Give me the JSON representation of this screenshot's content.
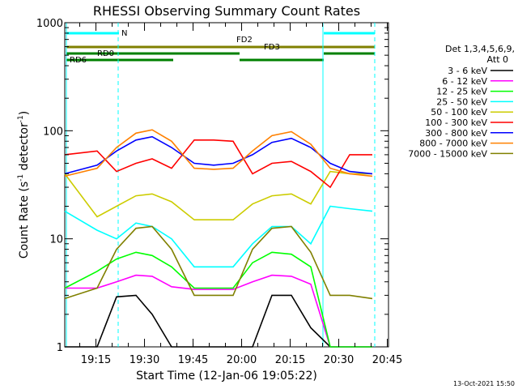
{
  "chart_data": {
    "type": "line",
    "title": "RHESSI Observing Summary Count Rates",
    "xlabel": "Start Time (12-Jan-06 19:05:22)",
    "ylabel": "Count Rate (s⁻¹ detector⁻¹)",
    "ylabel_main": "Count Rate (s",
    "ylabel_sup1": "-1",
    "ylabel_mid": " detector",
    "ylabel_sup2": "-1",
    "ylabel_end": ")",
    "yscale": "log",
    "ylim": [
      1,
      1000
    ],
    "xlim_minutes": [
      0,
      100
    ],
    "x_ticks": [
      "19:15",
      "19:30",
      "19:45",
      "20:00",
      "20:15",
      "20:30",
      "20:45"
    ],
    "y_ticks": [
      "1",
      "10",
      "100",
      "1000"
    ],
    "legend_header": [
      "Det 1,3,4,5,6,9,",
      "Att 0"
    ],
    "legend_position": "right",
    "footer": "13-Oct-2021 15:50",
    "flags": [
      {
        "label": "N",
        "color": "#00ffff"
      },
      {
        "label": "FD2",
        "color": "#808000"
      },
      {
        "label": "FD3",
        "color": "#808000"
      },
      {
        "label": "RD0",
        "color": "#008000"
      },
      {
        "label": "RD6",
        "color": "#008000"
      }
    ],
    "flag_labels": {
      "n": "N",
      "fd2": "FD2",
      "fd3": "FD3",
      "rd0": "RD0",
      "rd6": "RD6"
    },
    "series": [
      {
        "name": "3 - 6 keV",
        "color": "#000000",
        "x": [
          0,
          10,
          16,
          22,
          27,
          33,
          40,
          46,
          52,
          58,
          64,
          70,
          76,
          82,
          88,
          95
        ],
        "y": [
          1,
          1,
          2.9,
          3.0,
          2.0,
          1.0,
          1,
          1,
          1,
          1,
          3.0,
          3.0,
          1.5,
          1,
          1,
          1
        ]
      },
      {
        "name": "6 - 12 keV",
        "color": "#ff00ff",
        "x": [
          0,
          10,
          16,
          22,
          27,
          33,
          40,
          46,
          52,
          58,
          64,
          70,
          76,
          82,
          88,
          95
        ],
        "y": [
          3.5,
          3.5,
          4.0,
          4.6,
          4.5,
          3.6,
          3.4,
          3.4,
          3.4,
          4.0,
          4.6,
          4.5,
          3.8,
          1.0,
          1.0,
          1.0
        ]
      },
      {
        "name": "12 - 25 keV",
        "color": "#00ff00",
        "x": [
          0,
          10,
          16,
          22,
          27,
          33,
          40,
          46,
          52,
          58,
          64,
          70,
          76,
          82,
          88,
          95
        ],
        "y": [
          3.5,
          5.0,
          6.5,
          7.5,
          7.0,
          5.5,
          3.5,
          3.5,
          3.5,
          6.0,
          7.5,
          7.2,
          5.5,
          1.0,
          1.0,
          1.0
        ]
      },
      {
        "name": "25 - 50 keV",
        "color": "#00ffff",
        "x": [
          0,
          10,
          16,
          22,
          27,
          33,
          40,
          46,
          52,
          58,
          64,
          70,
          76,
          82,
          88,
          95
        ],
        "y": [
          18,
          12,
          10,
          14,
          13,
          10,
          5.5,
          5.5,
          5.5,
          9,
          13,
          13,
          9,
          20,
          19,
          18
        ]
      },
      {
        "name": "50 - 100 keV",
        "color": "#cccc00",
        "x": [
          0,
          10,
          16,
          22,
          27,
          33,
          40,
          46,
          52,
          58,
          64,
          70,
          76,
          82,
          88,
          95
        ],
        "y": [
          40,
          16,
          20,
          25,
          26,
          22,
          15,
          15,
          15,
          21,
          25,
          26,
          21,
          42,
          40,
          40
        ]
      },
      {
        "name": "100 - 300 keV",
        "color": "#ff0000",
        "x": [
          0,
          10,
          16,
          22,
          27,
          33,
          40,
          46,
          52,
          58,
          64,
          70,
          76,
          82,
          88,
          95
        ],
        "y": [
          60,
          65,
          42,
          50,
          55,
          45,
          82,
          82,
          80,
          40,
          50,
          52,
          42,
          30,
          60,
          60
        ]
      },
      {
        "name": "300 - 800 keV",
        "color": "#0000ff",
        "x": [
          0,
          10,
          16,
          22,
          27,
          33,
          40,
          46,
          52,
          58,
          64,
          70,
          76,
          82,
          88,
          95
        ],
        "y": [
          40,
          48,
          65,
          82,
          88,
          70,
          50,
          48,
          50,
          60,
          78,
          85,
          70,
          50,
          42,
          40
        ]
      },
      {
        "name": "800 - 7000 keV",
        "color": "#ff8000",
        "x": [
          0,
          10,
          16,
          22,
          27,
          33,
          40,
          46,
          52,
          58,
          64,
          70,
          76,
          82,
          88,
          95
        ],
        "y": [
          38,
          45,
          70,
          95,
          102,
          80,
          45,
          44,
          45,
          65,
          90,
          98,
          75,
          45,
          40,
          38
        ]
      },
      {
        "name": "7000 - 15000 keV",
        "color": "#808000",
        "x": [
          0,
          10,
          16,
          22,
          27,
          33,
          40,
          46,
          52,
          58,
          64,
          70,
          76,
          82,
          88,
          95
        ],
        "y": [
          2.8,
          3.5,
          8.0,
          12.5,
          13.0,
          8.0,
          3.0,
          3.0,
          3.0,
          8.0,
          12.5,
          13.0,
          7.5,
          3.0,
          3.0,
          2.8
        ]
      }
    ]
  }
}
